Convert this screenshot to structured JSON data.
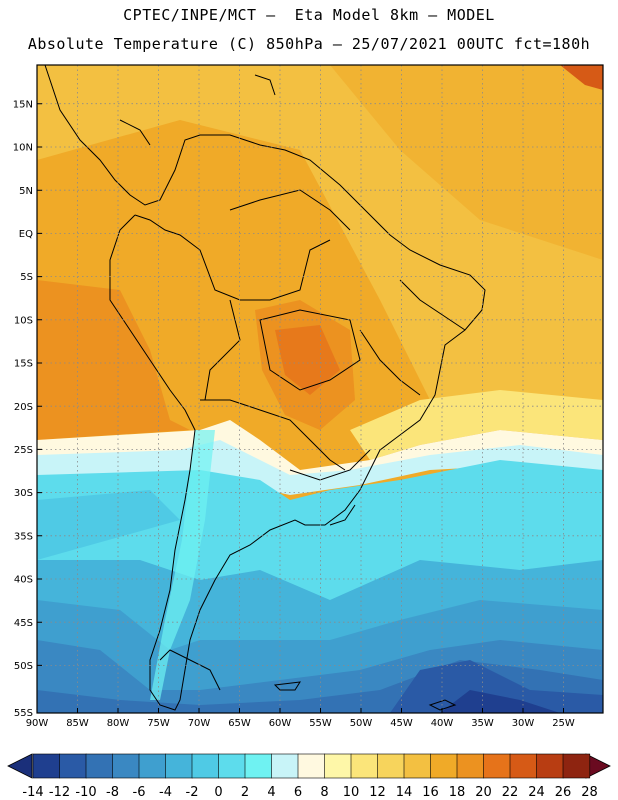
{
  "header": {
    "line1": "CPTEC/INPE/MCT –  Eta Model 8km – MODEL",
    "line2": "Absolute Temperature (C) 850hPa – 25/07/2021 00UTC fct=180h"
  },
  "map": {
    "lat_labels": [
      "15N",
      "10N",
      "5N",
      "EQ",
      "5S",
      "10S",
      "15S",
      "20S",
      "25S",
      "30S",
      "35S",
      "40S",
      "45S",
      "50S",
      "55S"
    ],
    "lon_labels": [
      "90W",
      "85W",
      "80W",
      "75W",
      "70W",
      "65W",
      "60W",
      "55W",
      "50W",
      "45W",
      "40W",
      "35W",
      "30W",
      "25W"
    ]
  },
  "colorbar": {
    "labels": [
      "-14",
      "-12",
      "-10",
      "-8",
      "-6",
      "-4",
      "-2",
      "0",
      "2",
      "4",
      "6",
      "8",
      "10",
      "12",
      "14",
      "16",
      "18",
      "20",
      "22",
      "24",
      "26",
      "28"
    ],
    "colors": [
      "#1f3f8f",
      "#2a5aa6",
      "#3372b4",
      "#3a88c2",
      "#3f9fcf",
      "#45b4da",
      "#4fcae5",
      "#5ddcec",
      "#6ff2f2",
      "#c8f4f8",
      "#fff9e0",
      "#fef7a8",
      "#fbe57a",
      "#f7d45c",
      "#f3c041",
      "#f0aa28",
      "#ec9220",
      "#e6731a",
      "#d65a16",
      "#b83d12",
      "#8e2410",
      "#6a0a20"
    ],
    "left_arrow_color": "#1a2f7a",
    "right_arrow_color": "#6a0a20"
  }
}
